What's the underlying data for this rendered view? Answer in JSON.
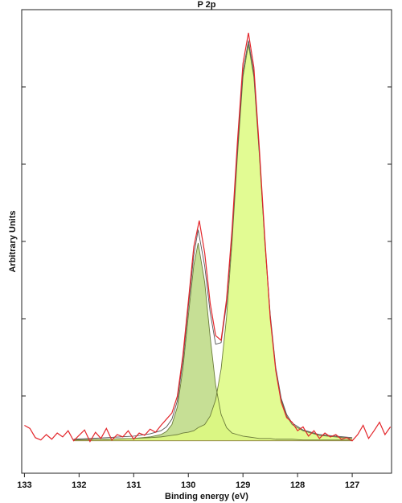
{
  "chart_data": {
    "type": "line",
    "title": "P 2p",
    "x_label": "Binding energy (eV)",
    "y_label": "Arbitrary Units",
    "xlim": [
      133.05,
      126.28
    ],
    "xticks": [
      133,
      132,
      131,
      130,
      129,
      128,
      127
    ],
    "ylim": [
      0,
      6
    ],
    "yticks": [
      1,
      2,
      3,
      4,
      5,
      6
    ],
    "series": [
      {
        "color": "#6b7b3a",
        "fill": "#bcd982",
        "x": [
          132.1,
          131.5,
          131.0,
          130.7,
          130.5,
          130.4,
          130.3,
          130.2,
          130.1,
          130.0,
          129.9,
          129.82,
          129.7,
          129.6,
          129.5,
          129.4,
          129.3,
          129.2,
          129.1,
          129.0,
          128.9,
          128.8,
          128.7,
          128.6,
          128.5,
          128.4,
          128.3,
          128.2,
          128.1,
          127.9,
          127.6,
          127.3,
          127.0
        ],
        "values": [
          0.43,
          0.44,
          0.45,
          0.47,
          0.5,
          0.54,
          0.63,
          0.86,
          1.35,
          2.04,
          2.69,
          2.98,
          2.47,
          1.76,
          1.14,
          0.76,
          0.59,
          0.52,
          0.5,
          0.48,
          0.47,
          0.46,
          0.45,
          0.45,
          0.45,
          0.44,
          0.44,
          0.44,
          0.44,
          0.43,
          0.43,
          0.43,
          0.43
        ]
      },
      {
        "color": "#6b7b3a",
        "fill": "#ddfa80",
        "x": [
          132.1,
          131.5,
          131.0,
          130.7,
          130.5,
          130.4,
          130.3,
          130.2,
          130.1,
          130.0,
          129.9,
          129.82,
          129.7,
          129.6,
          129.5,
          129.4,
          129.3,
          129.2,
          129.1,
          129.0,
          128.9,
          128.8,
          128.7,
          128.6,
          128.5,
          128.4,
          128.3,
          128.2,
          128.1,
          127.9,
          127.6,
          127.3,
          127.0
        ],
        "values": [
          0.43,
          0.44,
          0.45,
          0.46,
          0.47,
          0.48,
          0.49,
          0.5,
          0.52,
          0.53,
          0.55,
          0.59,
          0.63,
          0.74,
          0.95,
          1.35,
          2.02,
          2.99,
          4.12,
          5.13,
          5.55,
          5.13,
          4.12,
          2.99,
          2.02,
          1.35,
          0.95,
          0.74,
          0.63,
          0.55,
          0.49,
          0.47,
          0.45
        ]
      },
      {
        "color": "#8a7a3e",
        "x": [
          132.1,
          131.5,
          131.0,
          130.7,
          130.5,
          130.4,
          130.3,
          130.2,
          130.1,
          130.0,
          129.9,
          129.82,
          129.7,
          129.6,
          129.5,
          129.4,
          129.3,
          129.2,
          129.1,
          129.0,
          128.9,
          128.8,
          128.7,
          128.6,
          128.5,
          128.4,
          128.3,
          128.2,
          128.1,
          127.9,
          127.6,
          127.3,
          127.0
        ],
        "values": [
          0.42,
          0.42,
          0.42,
          0.42,
          0.42,
          0.42,
          0.42,
          0.42,
          0.42,
          0.42,
          0.42,
          0.42,
          0.42,
          0.42,
          0.42,
          0.42,
          0.42,
          0.42,
          0.42,
          0.42,
          0.42,
          0.42,
          0.42,
          0.42,
          0.42,
          0.42,
          0.42,
          0.42,
          0.42,
          0.42,
          0.42,
          0.42,
          0.42
        ]
      },
      {
        "color": "#555555",
        "x": [
          132.1,
          131.5,
          131.0,
          130.7,
          130.5,
          130.4,
          130.3,
          130.2,
          130.1,
          130.0,
          129.9,
          129.82,
          129.7,
          129.6,
          129.5,
          129.4,
          129.3,
          129.2,
          129.1,
          129.0,
          128.9,
          128.8,
          128.7,
          128.6,
          128.5,
          128.4,
          128.3,
          128.2,
          128.1,
          127.9,
          127.6,
          127.3,
          127.0
        ],
        "values": [
          0.44,
          0.46,
          0.48,
          0.51,
          0.55,
          0.6,
          0.7,
          0.94,
          1.45,
          2.15,
          2.82,
          3.15,
          2.68,
          2.08,
          1.67,
          1.69,
          2.19,
          3.09,
          4.2,
          5.19,
          5.6,
          5.17,
          4.15,
          3.02,
          2.05,
          1.37,
          0.97,
          0.76,
          0.65,
          0.56,
          0.5,
          0.48,
          0.46
        ]
      },
      {
        "color": "#e3262b",
        "x": [
          133.0,
          132.9,
          132.8,
          132.7,
          132.6,
          132.5,
          132.4,
          132.3,
          132.2,
          132.1,
          132.0,
          131.9,
          131.8,
          131.7,
          131.6,
          131.5,
          131.4,
          131.3,
          131.2,
          131.1,
          131.0,
          130.9,
          130.8,
          130.7,
          130.6,
          130.5,
          130.4,
          130.3,
          130.2,
          130.1,
          130.0,
          129.9,
          129.8,
          129.7,
          129.6,
          129.5,
          129.4,
          129.3,
          129.2,
          129.1,
          129.0,
          128.9,
          128.8,
          128.7,
          128.6,
          128.5,
          128.4,
          128.3,
          128.2,
          128.1,
          128.0,
          127.9,
          127.8,
          127.7,
          127.6,
          127.5,
          127.4,
          127.3,
          127.2,
          127.1,
          127.0,
          126.9,
          126.8,
          126.7,
          126.6,
          126.5,
          126.4,
          126.3
        ],
        "values": [
          0.62,
          0.58,
          0.46,
          0.43,
          0.5,
          0.44,
          0.52,
          0.47,
          0.55,
          0.42,
          0.49,
          0.56,
          0.41,
          0.53,
          0.45,
          0.58,
          0.43,
          0.5,
          0.47,
          0.55,
          0.44,
          0.52,
          0.49,
          0.57,
          0.53,
          0.62,
          0.7,
          0.78,
          1.0,
          1.52,
          2.22,
          2.93,
          3.27,
          2.85,
          2.2,
          1.78,
          1.72,
          2.25,
          3.15,
          4.3,
          5.3,
          5.7,
          5.25,
          4.2,
          3.05,
          2.0,
          1.33,
          0.92,
          0.72,
          0.66,
          0.55,
          0.6,
          0.48,
          0.55,
          0.45,
          0.52,
          0.47,
          0.5,
          0.44,
          0.46,
          0.42,
          0.5,
          0.62,
          0.45,
          0.55,
          0.66,
          0.5,
          0.6
        ]
      }
    ]
  }
}
